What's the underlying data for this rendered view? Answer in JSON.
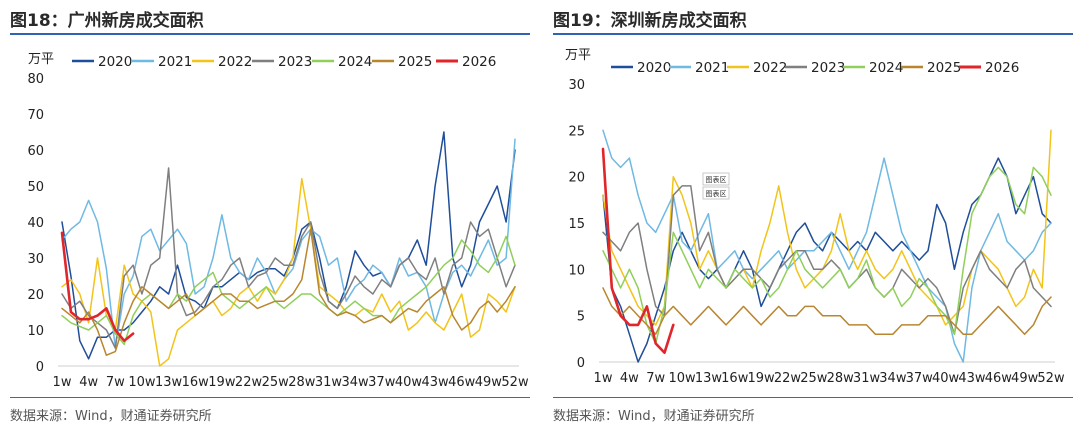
{
  "charts": [
    {
      "title": "图18：广州新房成交面积",
      "source": "数据来源：Wind，财通证券研究所",
      "chart_data": {
        "type": "line",
        "title": "图18：广州新房成交面积",
        "ylabel": "万平",
        "xlabel": "",
        "ylim": [
          0,
          80
        ],
        "yticks": [
          0,
          10,
          20,
          30,
          40,
          50,
          60,
          70,
          80
        ],
        "x_tick_labels": [
          "1w",
          "4w",
          "7w",
          "10w",
          "13w",
          "16w",
          "19w",
          "22w",
          "25w",
          "28w",
          "31w",
          "34w",
          "37w",
          "40w",
          "43w",
          "46w",
          "49w",
          "52w"
        ],
        "legend": [
          "2020",
          "2021",
          "2022",
          "2023",
          "2024",
          "2025",
          "2026"
        ],
        "series": [
          {
            "name": "2020",
            "color": "#1f4e9a",
            "values": [
              40,
              25,
              7,
              2,
              8,
              8,
              10,
              10,
              12,
              15,
              18,
              22,
              20,
              28,
              19,
              18,
              16,
              22,
              22,
              24,
              26,
              24,
              26,
              27,
              27,
              25,
              30,
              38,
              40,
              30,
              18,
              16,
              22,
              32,
              28,
              25,
              26,
              22,
              28,
              30,
              35,
              28,
              50,
              65,
              30,
              22,
              28,
              40,
              45,
              50,
              40,
              60
            ]
          },
          {
            "name": "2021",
            "color": "#6fb9e3",
            "values": [
              35,
              38,
              40,
              46,
              40,
              27,
              5,
              20,
              25,
              36,
              38,
              32,
              35,
              38,
              34,
              20,
              22,
              30,
              42,
              30,
              26,
              24,
              30,
              26,
              20,
              24,
              27,
              35,
              38,
              36,
              28,
              30,
              18,
              22,
              24,
              28,
              26,
              22,
              30,
              25,
              26,
              22,
              12,
              20,
              26,
              28,
              25,
              30,
              35,
              28,
              30,
              63
            ]
          },
          {
            "name": "2022",
            "color": "#f2c41a",
            "values": [
              22,
              24,
              20,
              12,
              30,
              14,
              10,
              28,
              20,
              18,
              15,
              0,
              2,
              10,
              12,
              14,
              16,
              18,
              14,
              16,
              20,
              22,
              18,
              22,
              20,
              24,
              30,
              52,
              38,
              22,
              20,
              18,
              15,
              14,
              16,
              15,
              20,
              15,
              18,
              10,
              12,
              15,
              12,
              10,
              15,
              20,
              8,
              10,
              20,
              18,
              15,
              22
            ]
          },
          {
            "name": "2023",
            "color": "#7f7f7f",
            "values": [
              20,
              16,
              18,
              14,
              12,
              10,
              5,
              25,
              28,
              20,
              28,
              30,
              55,
              20,
              14,
              15,
              18,
              22,
              24,
              28,
              30,
              22,
              25,
              26,
              30,
              28,
              28,
              36,
              40,
              26,
              18,
              16,
              20,
              25,
              22,
              20,
              24,
              22,
              28,
              30,
              26,
              24,
              30,
              20,
              28,
              30,
              40,
              36,
              38,
              30,
              22,
              28
            ]
          },
          {
            "name": "2024",
            "color": "#8fcf5a",
            "values": [
              14,
              12,
              11,
              10,
              12,
              14,
              9,
              6,
              14,
              18,
              20,
              18,
              16,
              20,
              18,
              22,
              24,
              26,
              20,
              18,
              16,
              18,
              20,
              22,
              18,
              16,
              18,
              20,
              20,
              18,
              16,
              14,
              16,
              18,
              16,
              14,
              14,
              12,
              16,
              18,
              20,
              22,
              25,
              28,
              30,
              35,
              32,
              28,
              26,
              30,
              36,
              28
            ]
          },
          {
            "name": "2025",
            "color": "#b8862f",
            "values": [
              16,
              14,
              12,
              15,
              10,
              3,
              4,
              12,
              18,
              22,
              20,
              18,
              16,
              18,
              20,
              14,
              16,
              18,
              20,
              20,
              18,
              18,
              16,
              17,
              18,
              18,
              20,
              24,
              38,
              20,
              16,
              14,
              15,
              14,
              12,
              13,
              14,
              12,
              14,
              16,
              15,
              18,
              20,
              22,
              14,
              10,
              12,
              16,
              18,
              15,
              18,
              22
            ]
          },
          {
            "name": "2026",
            "color": "#e0262a",
            "values": [
              37,
              15,
              13,
              13,
              14,
              16,
              10,
              7,
              9
            ]
          }
        ]
      }
    },
    {
      "title": "图19：深圳新房成交面积",
      "source": "数据来源：Wind，财通证券研究所",
      "chart_data": {
        "type": "line",
        "title": "图19：深圳新房成交面积",
        "ylabel": "万平",
        "xlabel": "",
        "ylim": [
          0,
          30
        ],
        "yticks": [
          0,
          5,
          10,
          15,
          20,
          25,
          30
        ],
        "x_tick_labels": [
          "1w",
          "4w",
          "7w",
          "10w",
          "13w",
          "16w",
          "19w",
          "22w",
          "25w",
          "28w",
          "31w",
          "34w",
          "37w",
          "40w",
          "43w",
          "46w",
          "49w",
          "52w"
        ],
        "legend": [
          "2020",
          "2021",
          "2022",
          "2023",
          "2024",
          "2025",
          "2026"
        ],
        "annotations": [
          "图表区",
          "图表区"
        ],
        "series": [
          {
            "name": "2020",
            "color": "#1f4e9a",
            "values": [
              18,
              8,
              6,
              3,
              0,
              2,
              5,
              8,
              12,
              14,
              12,
              10,
              9,
              10,
              8,
              10,
              12,
              10,
              6,
              8,
              10,
              12,
              14,
              15,
              13,
              12,
              14,
              13,
              12,
              13,
              12,
              14,
              13,
              12,
              13,
              12,
              11,
              12,
              17,
              15,
              10,
              14,
              17,
              18,
              20,
              22,
              20,
              16,
              18,
              20,
              16,
              15
            ]
          },
          {
            "name": "2021",
            "color": "#6fb9e3",
            "values": [
              25,
              22,
              21,
              22,
              18,
              15,
              14,
              16,
              18,
              13,
              12,
              14,
              16,
              10,
              11,
              12,
              10,
              9,
              10,
              11,
              12,
              10,
              11,
              12,
              12,
              13,
              14,
              12,
              10,
              12,
              14,
              18,
              22,
              18,
              14,
              12,
              10,
              8,
              7,
              6,
              2,
              0,
              8,
              12,
              14,
              16,
              13,
              12,
              11,
              12,
              14,
              15
            ]
          },
          {
            "name": "2022",
            "color": "#f2c41a",
            "values": [
              18,
              12,
              10,
              8,
              6,
              5,
              4,
              6,
              20,
              18,
              15,
              10,
              12,
              10,
              8,
              9,
              10,
              8,
              12,
              15,
              19,
              14,
              10,
              8,
              9,
              10,
              12,
              16,
              12,
              10,
              12,
              10,
              9,
              10,
              12,
              10,
              8,
              7,
              6,
              4,
              5,
              6,
              10,
              12,
              11,
              10,
              8,
              6,
              7,
              10,
              8,
              25
            ]
          },
          {
            "name": "2023",
            "color": "#7f7f7f",
            "values": [
              14,
              13,
              12,
              14,
              15,
              10,
              6,
              5,
              18,
              19,
              19,
              12,
              14,
              10,
              8,
              9,
              10,
              10,
              9,
              8,
              10,
              11,
              12,
              12,
              10,
              10,
              11,
              10,
              8,
              9,
              10,
              8,
              7,
              8,
              10,
              9,
              8,
              9,
              8,
              6,
              3,
              8,
              10,
              12,
              10,
              9,
              8,
              10,
              11,
              8,
              7,
              6
            ]
          },
          {
            "name": "2024",
            "color": "#8fcf5a",
            "values": [
              12,
              10,
              8,
              10,
              8,
              4,
              2,
              6,
              14,
              12,
              10,
              8,
              10,
              9,
              8,
              10,
              9,
              8,
              9,
              7,
              8,
              10,
              12,
              10,
              9,
              8,
              9,
              10,
              8,
              9,
              11,
              8,
              7,
              8,
              6,
              7,
              9,
              8,
              6,
              5,
              3,
              10,
              16,
              18,
              20,
              21,
              20,
              17,
              16,
              21,
              20,
              18
            ]
          },
          {
            "name": "2025",
            "color": "#b8862f",
            "values": [
              8,
              6,
              5,
              6,
              5,
              4,
              3,
              5,
              6,
              5,
              4,
              5,
              6,
              5,
              4,
              5,
              6,
              5,
              4,
              5,
              6,
              5,
              5,
              6,
              6,
              5,
              5,
              5,
              4,
              4,
              4,
              3,
              3,
              3,
              4,
              4,
              4,
              5,
              5,
              5,
              4,
              3,
              3,
              4,
              5,
              6,
              5,
              4,
              3,
              4,
              6,
              7
            ]
          },
          {
            "name": "2026",
            "color": "#e0262a",
            "values": [
              23,
              8,
              5,
              4,
              4,
              6,
              2,
              1,
              4
            ]
          }
        ]
      }
    }
  ]
}
